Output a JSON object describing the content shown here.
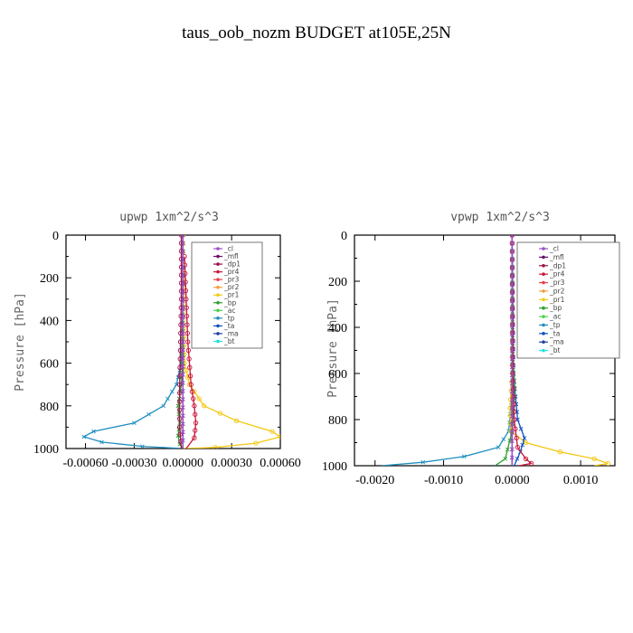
{
  "title": "taus_oob_nozm  BUDGET at105E,25N",
  "legend_items": [
    {
      "label": "_cl",
      "color": "#9a4fc8"
    },
    {
      "label": "_mfl",
      "color": "#6a0f6a"
    },
    {
      "label": "_dp1",
      "color": "#a0104a"
    },
    {
      "label": "_pr4",
      "color": "#c8163a"
    },
    {
      "label": "_pr3",
      "color": "#e8404a"
    },
    {
      "label": "_pr2",
      "color": "#f0a040"
    },
    {
      "label": "_pr1",
      "color": "#f2c814"
    },
    {
      "label": "_bp",
      "color": "#2aa02a"
    },
    {
      "label": "_ac",
      "color": "#50d050"
    },
    {
      "label": "_tp",
      "color": "#1f8fbf"
    },
    {
      "label": "_ta",
      "color": "#1050c0"
    },
    {
      "label": "_ma",
      "color": "#2040a0"
    },
    {
      "label": "_bt",
      "color": "#20e0e0"
    }
  ],
  "chart_data": [
    {
      "type": "line",
      "title": "upwp  1xm^2/s^3",
      "xlabel": "",
      "ylabel": "Pressure [hPa]",
      "xlim": [
        -0.00072,
        0.0006
      ],
      "ylim": [
        1000,
        0
      ],
      "xticks": [
        "-0.00060",
        "-0.00030",
        "0.00000",
        "0.00030",
        "0.00060"
      ],
      "xtick_values": [
        -0.0006,
        -0.0003,
        0.0,
        0.0003,
        0.0006
      ],
      "yticks": [
        "0",
        "200",
        "400",
        "600",
        "800",
        "1000"
      ],
      "ytick_values": [
        0,
        200,
        400,
        600,
        800,
        1000
      ],
      "legend_position": "top-right",
      "series": [
        {
          "name": "_tp",
          "color": "#1f8fbf",
          "marker": "x",
          "points": [
            [
              0,
              0
            ],
            [
              0,
              300
            ],
            [
              -1e-05,
              600
            ],
            [
              -4e-05,
              700
            ],
            [
              -0.00012,
              800
            ],
            [
              -0.0003,
              880
            ],
            [
              -0.00055,
              920
            ],
            [
              -0.00061,
              945
            ],
            [
              -0.0005,
              970
            ],
            [
              -0.00025,
              990
            ],
            [
              0,
              1000
            ]
          ]
        },
        {
          "name": "_pr1",
          "color": "#f2c814",
          "marker": "o",
          "points": [
            [
              0,
              0
            ],
            [
              0,
              400
            ],
            [
              1e-05,
              600
            ],
            [
              4e-05,
              700
            ],
            [
              0.00013,
              800
            ],
            [
              0.00033,
              870
            ],
            [
              0.00055,
              920
            ],
            [
              0.0006,
              945
            ],
            [
              0.00045,
              975
            ],
            [
              0.0002,
              995
            ],
            [
              0,
              1000
            ]
          ]
        },
        {
          "name": "_bp",
          "color": "#2aa02a",
          "marker": "x",
          "points": [
            [
              0,
              0
            ],
            [
              0,
              600
            ],
            [
              -1e-05,
              700
            ],
            [
              -3e-05,
              800
            ],
            [
              -2e-05,
              880
            ],
            [
              -3e-05,
              940
            ],
            [
              -2e-05,
              980
            ],
            [
              0,
              1000
            ]
          ]
        },
        {
          "name": "_pr4",
          "color": "#c8163a",
          "marker": "o",
          "points": [
            [
              1e-05,
              100
            ],
            [
              2e-05,
              300
            ],
            [
              3e-05,
              500
            ],
            [
              5e-05,
              700
            ],
            [
              7e-05,
              800
            ],
            [
              8e-05,
              880
            ],
            [
              7e-05,
              950
            ],
            [
              2e-05,
              1000
            ]
          ]
        },
        {
          "name": "_dp1",
          "color": "#a0104a",
          "marker": "o",
          "points": [
            [
              -1e-05,
              0
            ],
            [
              -1e-05,
              300
            ],
            [
              -2e-05,
              700
            ],
            [
              -2e-05,
              900
            ],
            [
              -1e-05,
              1000
            ]
          ]
        },
        {
          "name": "_mfl",
          "color": "#6a0f6a",
          "marker": "x",
          "points": [
            [
              0,
              0
            ],
            [
              0,
              1000
            ]
          ]
        },
        {
          "name": "_cl",
          "color": "#9a4fc8",
          "marker": "x",
          "points": [
            [
              0,
              0
            ],
            [
              0,
              1000
            ]
          ]
        }
      ]
    },
    {
      "type": "line",
      "title": "vpwp  1xm^2/s^3",
      "xlabel": "",
      "ylabel": "Pressure [hPa]",
      "xlim": [
        -0.0023,
        0.0015
      ],
      "ylim": [
        1000,
        0
      ],
      "xticks": [
        "-0.0020",
        "-0.0010",
        "0.0000",
        "0.0010"
      ],
      "xtick_values": [
        -0.002,
        -0.001,
        0.0,
        0.001
      ],
      "yticks": [
        "0",
        "200",
        "400",
        "600",
        "800",
        "1000"
      ],
      "ytick_values": [
        0,
        200,
        400,
        600,
        800,
        1000
      ],
      "legend_position": "top-right",
      "series": [
        {
          "name": "_tp",
          "color": "#1f8fbf",
          "marker": "x",
          "points": [
            [
              0,
              0
            ],
            [
              0,
              700
            ],
            [
              -5e-05,
              850
            ],
            [
              -0.0002,
              920
            ],
            [
              -0.0007,
              960
            ],
            [
              -0.0013,
              985
            ],
            [
              -0.0019,
              1000
            ]
          ]
        },
        {
          "name": "_pr1",
          "color": "#f2c814",
          "marker": "o",
          "points": [
            [
              0,
              0
            ],
            [
              0,
              600
            ],
            [
              -3e-05,
              750
            ],
            [
              -2e-05,
              850
            ],
            [
              0.0002,
              900
            ],
            [
              0.0007,
              940
            ],
            [
              0.0012,
              970
            ],
            [
              0.0014,
              990
            ],
            [
              0.0012,
              1000
            ]
          ]
        },
        {
          "name": "_ta",
          "color": "#1050c0",
          "marker": "x",
          "points": [
            [
              0,
              0
            ],
            [
              2e-05,
              600
            ],
            [
              8e-05,
              800
            ],
            [
              0.00018,
              880
            ],
            [
              0.00012,
              940
            ],
            [
              3e-05,
              1000
            ]
          ]
        },
        {
          "name": "_bp",
          "color": "#2aa02a",
          "marker": "x",
          "points": [
            [
              0,
              0
            ],
            [
              1e-05,
              550
            ],
            [
              3e-05,
              650
            ],
            [
              2e-05,
              750
            ],
            [
              0,
              850
            ],
            [
              -0.0001,
              970
            ],
            [
              -0.00025,
              1000
            ]
          ]
        },
        {
          "name": "_pr4",
          "color": "#c8163a",
          "marker": "o",
          "points": [
            [
              0,
              0
            ],
            [
              1e-05,
              600
            ],
            [
              3e-05,
              800
            ],
            [
              8e-05,
              920
            ],
            [
              0.0002,
              970
            ],
            [
              0.00028,
              990
            ],
            [
              0.0001,
              1000
            ]
          ]
        },
        {
          "name": "_mfl",
          "color": "#6a0f6a",
          "marker": "x",
          "points": [
            [
              0,
              0
            ],
            [
              0,
              1000
            ]
          ]
        },
        {
          "name": "_cl",
          "color": "#9a4fc8",
          "marker": "x",
          "points": [
            [
              0,
              0
            ],
            [
              0,
              1000
            ]
          ]
        }
      ]
    }
  ]
}
